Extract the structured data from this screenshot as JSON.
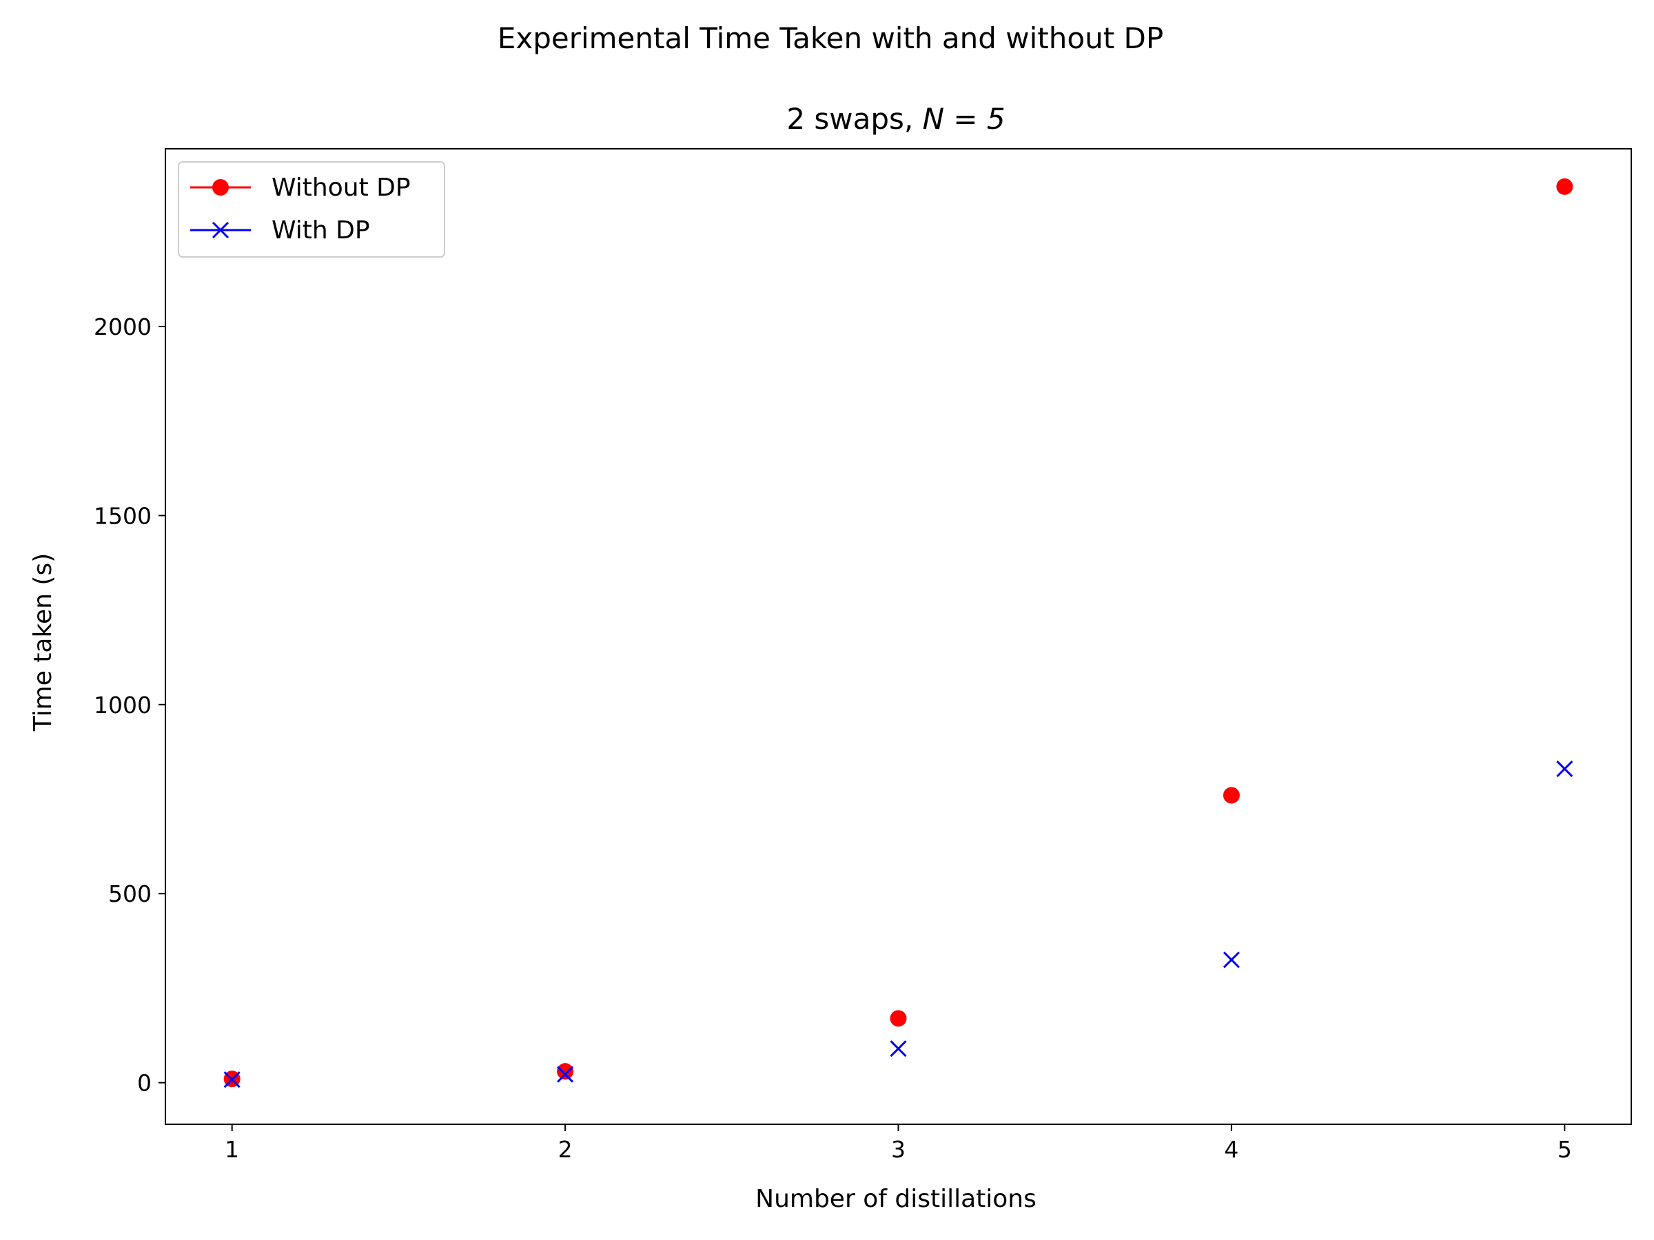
{
  "suptitle": "Experimental Time Taken with and without DP",
  "chart_data": {
    "type": "scatter",
    "title_prefix": "2 swaps, ",
    "title_math": "N = 5",
    "xlabel": "Number of distillations",
    "ylabel": "Time taken (s)",
    "xlim": [
      0.8,
      5.2
    ],
    "ylim": [
      -110,
      2470
    ],
    "xticks": [
      1,
      2,
      3,
      4,
      5
    ],
    "yticks": [
      0,
      500,
      1000,
      1500,
      2000
    ],
    "grid": false,
    "legend_placement": "top-left",
    "x": [
      1,
      2,
      3,
      4,
      5
    ],
    "series": [
      {
        "name": "Without DP",
        "marker": "circle",
        "color": "#ff0000",
        "values": [
          10,
          30,
          170,
          760,
          2370
        ]
      },
      {
        "name": "With DP",
        "marker": "x",
        "color": "#0000ff",
        "values": [
          8,
          22,
          90,
          325,
          830
        ]
      }
    ]
  }
}
